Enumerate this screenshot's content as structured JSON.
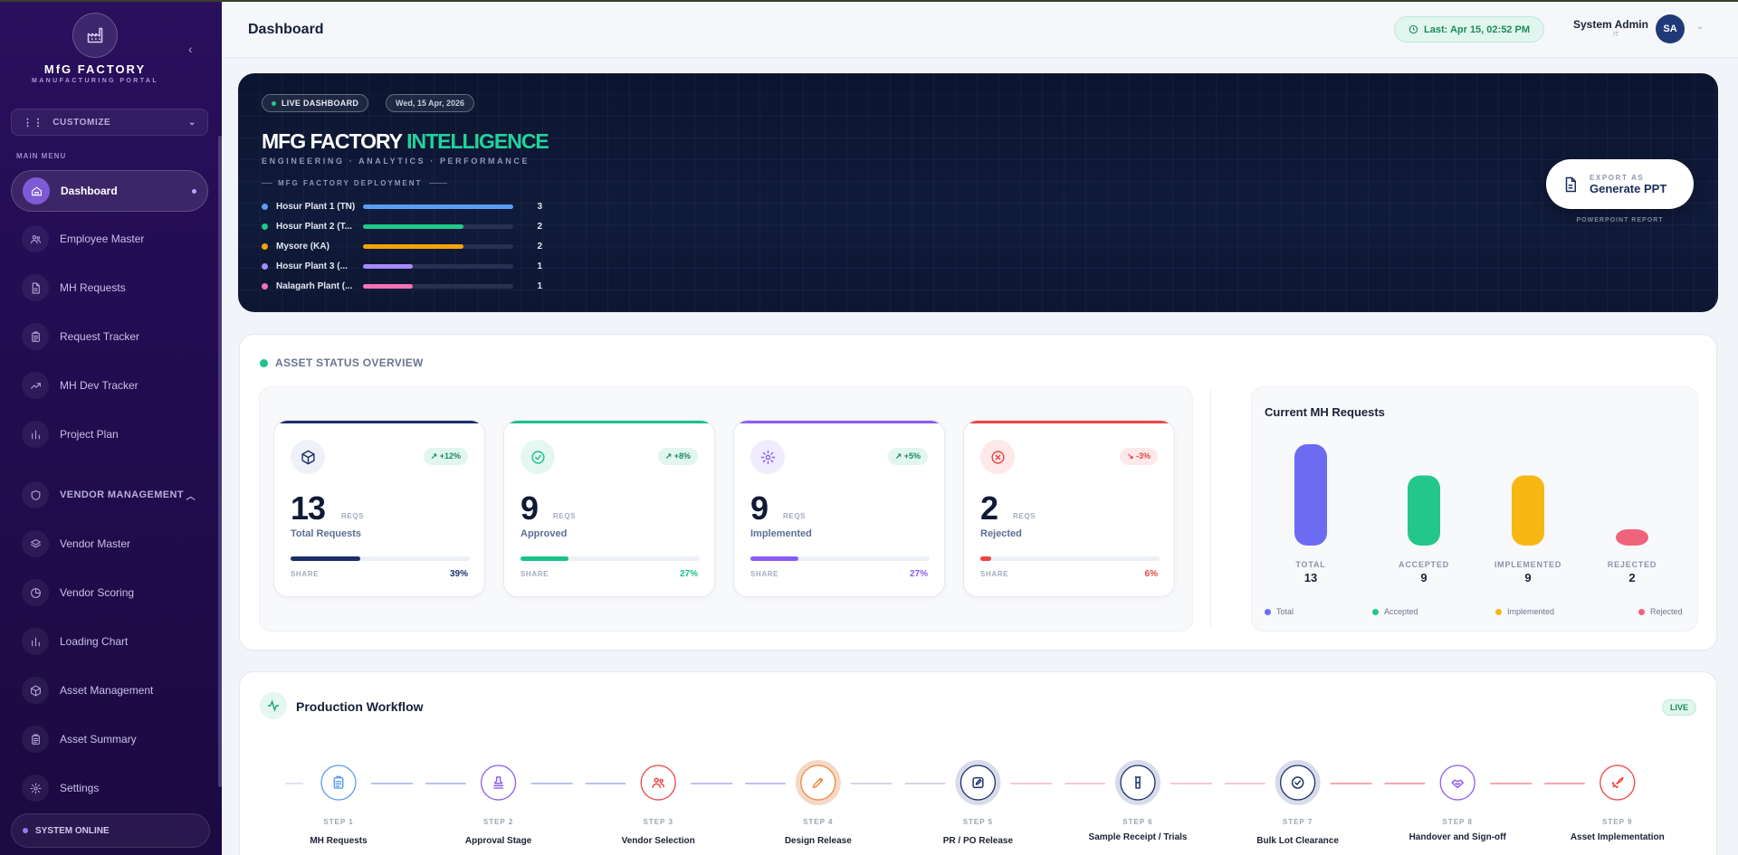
{
  "app": {
    "brand_name": "MfG FACTORY",
    "brand_sub": "MANUFACTURING PORTAL"
  },
  "sidebar": {
    "customize_label": "CUSTOMIZE",
    "menu_label": "MAIN MENU",
    "items": [
      {
        "label": "Dashboard",
        "icon": "home-icon",
        "active": true
      },
      {
        "label": "Employee Master",
        "icon": "users-icon"
      },
      {
        "label": "MH Requests",
        "icon": "file-icon"
      },
      {
        "label": "Request Tracker",
        "icon": "clipboard-icon"
      },
      {
        "label": "MH Dev Tracker",
        "icon": "trending-up-icon"
      },
      {
        "label": "Project Plan",
        "icon": "bar-chart-icon"
      }
    ],
    "vendor_section": {
      "label": "VENDOR MANAGEMENT",
      "icon": "shield-icon"
    },
    "vendor_items": [
      {
        "label": "Vendor Master",
        "icon": "layers-icon"
      },
      {
        "label": "Vendor Scoring",
        "icon": "pie-icon"
      },
      {
        "label": "Loading Chart",
        "icon": "bar-chart-icon"
      },
      {
        "label": "Asset Management",
        "icon": "box-icon"
      },
      {
        "label": "Asset Summary",
        "icon": "clipboard-icon"
      },
      {
        "label": "Settings",
        "icon": "gear-icon"
      }
    ],
    "status_label": "SYSTEM ONLINE"
  },
  "header": {
    "title": "Dashboard",
    "last_updated": "Last: Apr 15, 02:52 PM",
    "user_name": "System Admin",
    "user_role": "IT",
    "avatar_initials": "SA"
  },
  "hero": {
    "badge_live": "LIVE DASHBOARD",
    "badge_date": "Wed, 15 Apr, 2026",
    "title_main": "MFG FACTORY",
    "title_highlight": "INTELLIGENCE",
    "subtitle": "ENGINEERING · ANALYTICS · PERFORMANCE",
    "deployment_label": "MFG FACTORY DEPLOYMENT",
    "deployments": [
      {
        "name": "Hosur Plant 1 (TN)",
        "count": 3,
        "color": "#5b9cf5"
      },
      {
        "name": "Hosur Plant 2 (T...",
        "count": 2,
        "color": "#22c98a"
      },
      {
        "name": "Mysore (KA)",
        "count": 2,
        "color": "#f5a20a"
      },
      {
        "name": "Hosur Plant 3 (...",
        "count": 1,
        "color": "#a78bfa"
      },
      {
        "name": "Nalagarh Plant (...",
        "count": 1,
        "color": "#f472b6"
      }
    ],
    "export_small": "EXPORT AS",
    "export_big": "Generate PPT",
    "export_caption": "POWERPOINT REPORT"
  },
  "asset_status": {
    "title": "ASSET STATUS OVERVIEW",
    "kpis": [
      {
        "value": "13",
        "unit": "REQS",
        "label": "Total Requests",
        "change": "↗ +12%",
        "share_label": "SHARE",
        "share": "39%",
        "share_fraction": 0.39,
        "color": "#1c2f6b",
        "icon": "box-icon"
      },
      {
        "value": "9",
        "unit": "REQS",
        "label": "Approved",
        "change": "↗ +8%",
        "share_label": "SHARE",
        "share": "27%",
        "share_fraction": 0.27,
        "color": "#19c28a",
        "icon": "check-circle-icon"
      },
      {
        "value": "9",
        "unit": "REQS",
        "label": "Implemented",
        "change": "↗ +5%",
        "share_label": "SHARE",
        "share": "27%",
        "share_fraction": 0.27,
        "color": "#8b5cf6",
        "icon": "gear-icon"
      },
      {
        "value": "2",
        "unit": "REQS",
        "label": "Rejected",
        "change": "↘ -3%",
        "share_label": "SHARE",
        "share": "6%",
        "share_fraction": 0.06,
        "color": "#ef4444",
        "icon": "x-circle-icon"
      }
    ]
  },
  "chart_data": {
    "type": "bar",
    "title": "Current MH Requests",
    "categories": [
      "TOTAL",
      "ACCEPTED",
      "IMPLEMENTED",
      "REJECTED"
    ],
    "values": [
      13,
      9,
      9,
      2
    ],
    "colors": [
      "#6c6cf2",
      "#23c78c",
      "#f7b814",
      "#f0637c"
    ],
    "legend": [
      "Total",
      "Accepted",
      "Implemented",
      "Rejected"
    ],
    "legend_placement": "bottom",
    "grid": false
  },
  "workflow": {
    "title": "Production Workflow",
    "live_label": "LIVE",
    "steps": [
      {
        "step": "STEP 1",
        "label": "MH Requests",
        "color": "#5b9cf5",
        "icon": "clipboard-icon"
      },
      {
        "step": "STEP 2",
        "label": "Approval Stage",
        "color": "#8b5cf6",
        "icon": "stamp-icon"
      },
      {
        "step": "STEP 3",
        "label": "Vendor Selection",
        "color": "#ef4444",
        "icon": "users-icon"
      },
      {
        "step": "STEP 4",
        "label": "Design Release",
        "color": "#f08a3c",
        "icon": "pen-icon"
      },
      {
        "step": "STEP 5",
        "label": "PR / PO Release",
        "color": "#1c2f6b",
        "icon": "edit-icon"
      },
      {
        "step": "STEP 6",
        "label": "Sample Receipt / Trials",
        "color": "#1c2f6b",
        "icon": "beaker-icon"
      },
      {
        "step": "STEP 7",
        "label": "Bulk Lot Clearance",
        "color": "#1c2f6b",
        "icon": "check-circle-icon"
      },
      {
        "step": "STEP 8",
        "label": "Handover and Sign-off",
        "color": "#8b5cf6",
        "icon": "handshake-icon"
      },
      {
        "step": "STEP 9",
        "label": "Asset Implementation",
        "color": "#ef4444",
        "icon": "rocket-icon"
      }
    ]
  }
}
